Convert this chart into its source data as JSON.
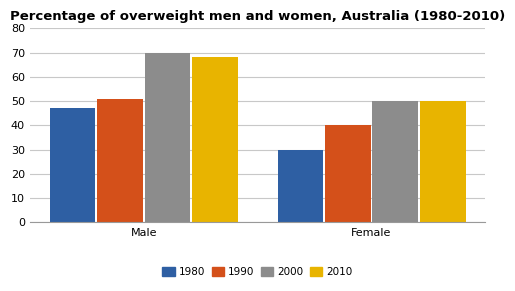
{
  "title": "Percentage of overweight men and women, Australia (1980-2010)",
  "categories": [
    "Male",
    "Female"
  ],
  "years": [
    "1980",
    "1990",
    "2000",
    "2010"
  ],
  "values": {
    "Male": [
      47,
      51,
      70,
      68
    ],
    "Female": [
      30,
      40,
      50,
      50
    ]
  },
  "colors": {
    "1980": "#2e5fa3",
    "1990": "#d4501a",
    "2000": "#8c8c8c",
    "2010": "#e8b400"
  },
  "ylim": [
    0,
    80
  ],
  "yticks": [
    0,
    10,
    20,
    30,
    40,
    50,
    60,
    70,
    80
  ],
  "title_fontsize": 9.5,
  "tick_fontsize": 8,
  "legend_fontsize": 7.5,
  "background_color": "#ffffff",
  "grid_color": "#c8c8c8",
  "bar_width": 0.12,
  "group_centers": [
    0.3,
    0.9
  ],
  "xlim": [
    0.0,
    1.2
  ]
}
